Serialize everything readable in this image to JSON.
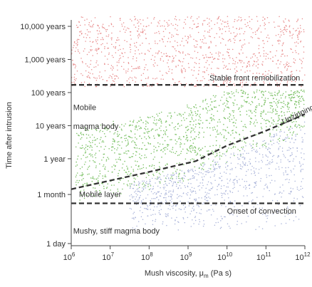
{
  "chart_data": {
    "type": "scatter",
    "title": "",
    "xlabel": "Mush viscosity, μ",
    "xlabel_sub": "m",
    "xlabel_unit": "(Pa s)",
    "ylabel": "Time after intrusion",
    "x_scale": "log",
    "y_scale": "log",
    "xlim": [
      6,
      12
    ],
    "x_ticks": [
      {
        "value": 6,
        "base": "10",
        "exp": "6"
      },
      {
        "value": 7,
        "base": "10",
        "exp": "7"
      },
      {
        "value": 8,
        "base": "10",
        "exp": "8"
      },
      {
        "value": 9,
        "base": "10",
        "exp": "9"
      },
      {
        "value": 10,
        "base": "10",
        "exp": "10"
      },
      {
        "value": 11,
        "base": "10",
        "exp": "11"
      },
      {
        "value": 12,
        "base": "10",
        "exp": "12"
      }
    ],
    "y_ticks": [
      {
        "label": "10,000 years",
        "value_years": 10000
      },
      {
        "label": "1,000 years",
        "value_years": 1000
      },
      {
        "label": "100 years",
        "value_years": 100
      },
      {
        "label": "10 years",
        "value_years": 10
      },
      {
        "label": "1 year",
        "value_years": 1
      },
      {
        "label": "1 month",
        "value_years": 0.0833
      },
      {
        "label": "1 day",
        "value_years": 0.00274
      }
    ],
    "ylim_years": [
      0.002,
      50000
    ],
    "grid": false,
    "series": [
      {
        "color": "#e88c8c",
        "x_range": [
          6,
          12
        ],
        "y_range_years": [
          150,
          20000
        ],
        "points": 1100
      },
      {
        "color": "#7fc36a",
        "region": "between convection-onset line and unzipping curve, upper band to stable front",
        "points": 1300
      },
      {
        "color": "#a9b3d9",
        "region": "below unzipping curve",
        "points": 900
      }
    ],
    "lines": [
      {
        "name": "Stable front remobilization",
        "style": "dashed",
        "x": [
          6,
          12
        ],
        "y_years": [
          170,
          170
        ]
      },
      {
        "name": "Onset of convection",
        "style": "dashed",
        "x": [
          6,
          12
        ],
        "y_years": [
          0.045,
          0.045
        ]
      },
      {
        "name": "Unzipping",
        "style": "dashed",
        "x": [
          6,
          7,
          8,
          9,
          9.2,
          10,
          11,
          12
        ],
        "y_years": [
          0.12,
          0.22,
          0.4,
          0.75,
          0.85,
          2.5,
          7,
          22
        ]
      }
    ],
    "annotations": [
      {
        "text": "Stable front remobilization",
        "x": 9.55,
        "y_years": 230
      },
      {
        "text": "Mobile",
        "x": 6.05,
        "y_years": 30
      },
      {
        "text": "magma body",
        "x": 6.05,
        "y_years": 8
      },
      {
        "text": "Unzipping",
        "x": 11.45,
        "y_years": 11
      },
      {
        "text": "Mobile layer",
        "x": 6.2,
        "y_years": 0.07
      },
      {
        "text": "Onset of convection",
        "x": 10.0,
        "y_years": 0.022
      },
      {
        "text": "Mushy, stiff magma body",
        "x": 6.05,
        "y_years": 0.0055
      }
    ]
  }
}
